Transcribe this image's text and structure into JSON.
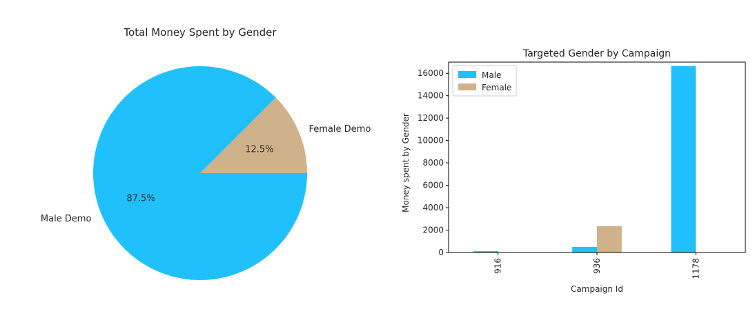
{
  "chart_data": [
    {
      "type": "pie",
      "title": "Total Money Spent by Gender",
      "labels": [
        "Male Demo",
        "Female Demo"
      ],
      "values": [
        87.5,
        12.5
      ],
      "pct_labels": [
        "87.5%",
        "12.5%"
      ],
      "colors": [
        "#20c0fc",
        "#d0b28a"
      ],
      "start_angle_deg": 0,
      "direction": "counterclockwise",
      "female_first": true
    },
    {
      "type": "bar",
      "title": "Targeted Gender by Campaign",
      "xlabel": "Campaign Id",
      "ylabel": "Money spent by Gender",
      "categories": [
        "916",
        "936",
        "1178"
      ],
      "series": [
        {
          "name": "Male",
          "color": "#20c0fc",
          "values": [
            120,
            500,
            16650
          ]
        },
        {
          "name": "Female",
          "color": "#d0b28a",
          "values": [
            0,
            2350,
            0
          ]
        }
      ],
      "ylim": [
        0,
        17000
      ],
      "yticks": [
        0,
        2000,
        4000,
        6000,
        8000,
        10000,
        12000,
        14000,
        16000
      ],
      "ytick_labels": [
        "0",
        "2000",
        "4000",
        "6000",
        "8000",
        "10000",
        "12000",
        "14000",
        "16000"
      ],
      "grid": false,
      "legend_position": "top-left"
    }
  ]
}
